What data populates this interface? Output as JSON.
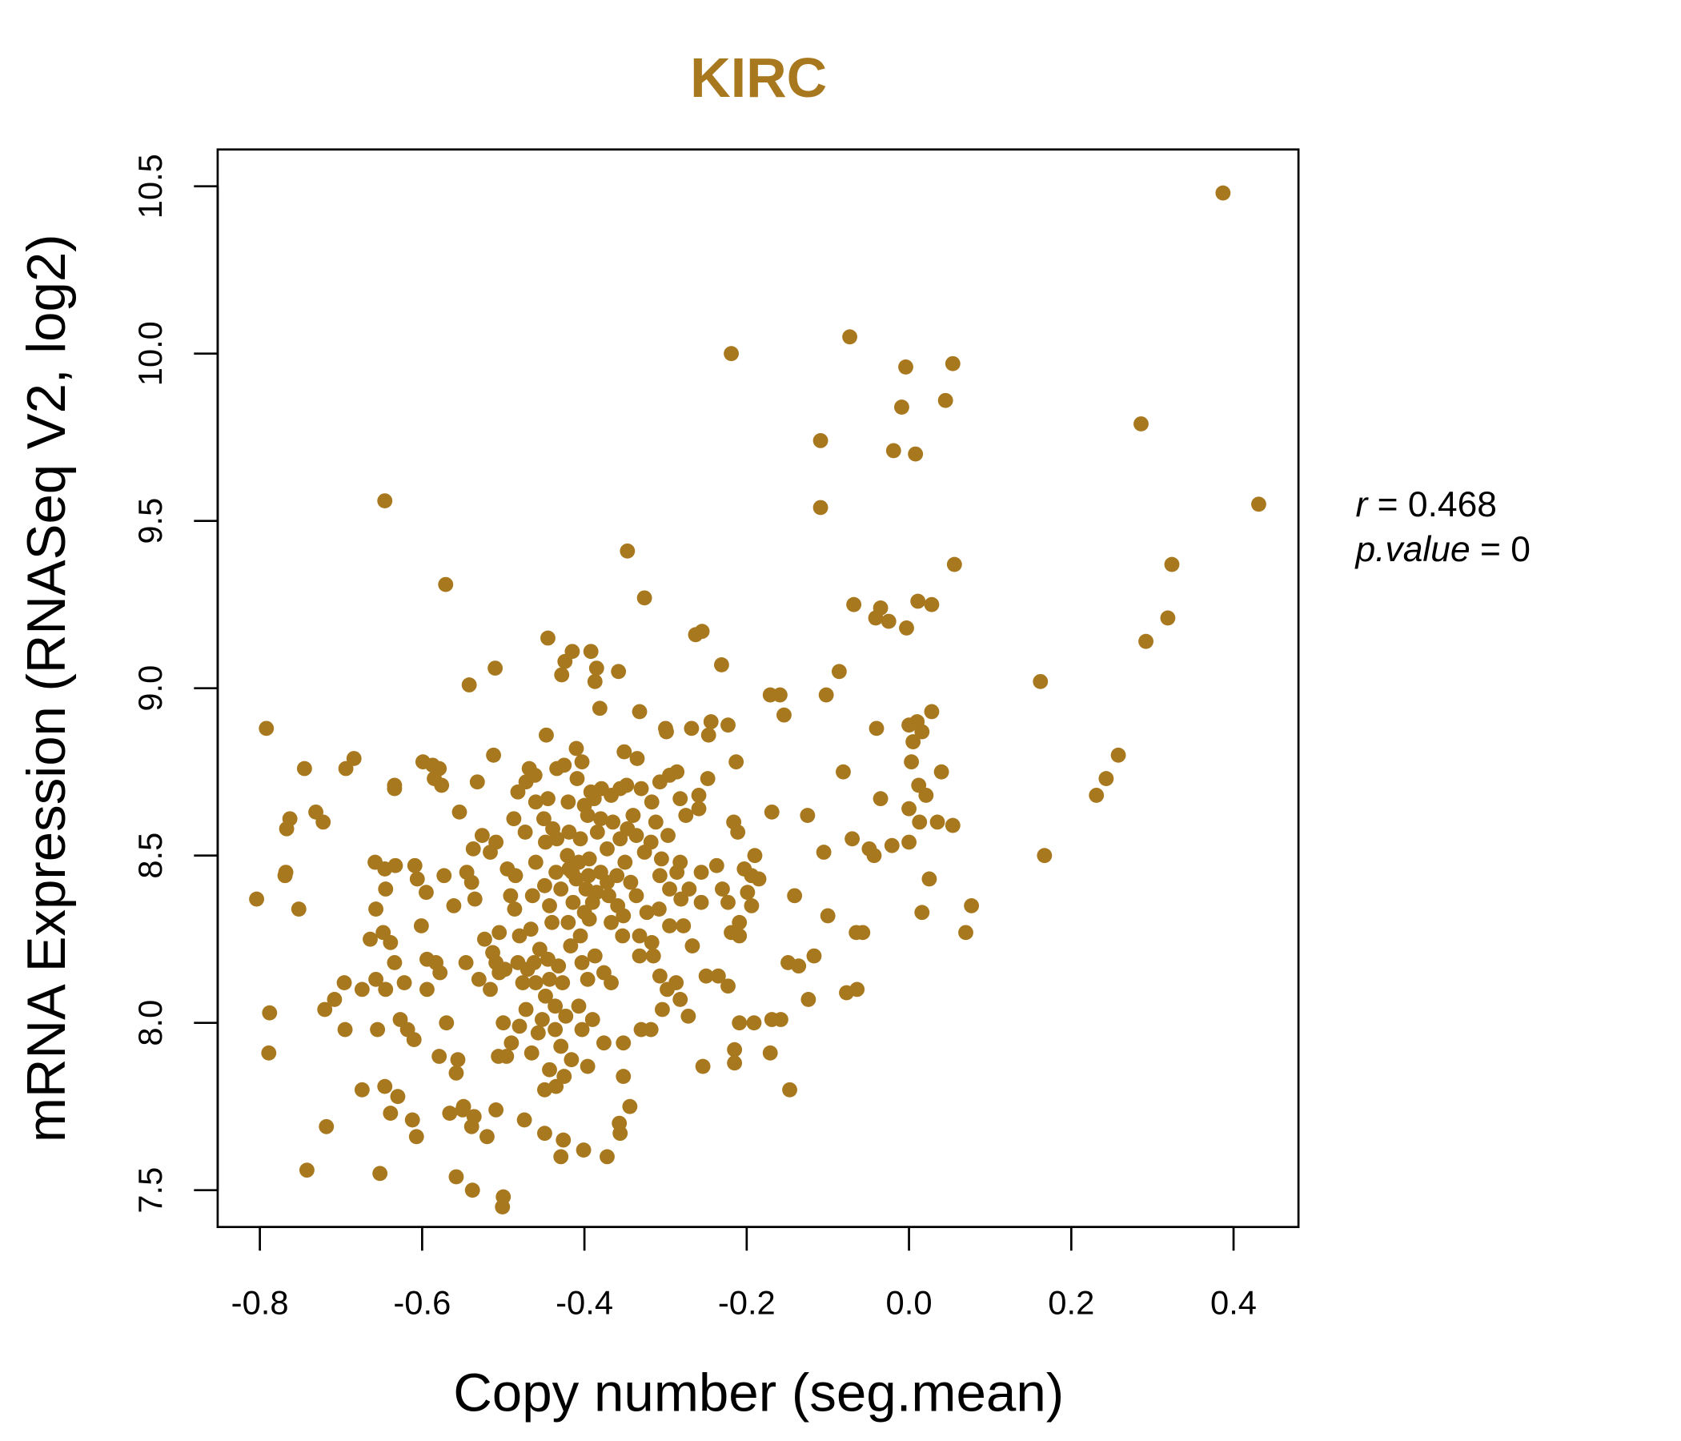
{
  "chart_data": {
    "type": "scatter",
    "title": "KIRC",
    "xlabel": "Copy number (seg.mean)",
    "ylabel": "mRNA Expression (RNASeq V2, log2)",
    "xlim": [
      -0.852,
      0.48
    ],
    "ylim": [
      7.39,
      10.61
    ],
    "xticks": [
      -0.8,
      -0.6,
      -0.4,
      -0.2,
      0.0,
      0.2,
      0.4
    ],
    "xtick_labels": [
      "-0.8",
      "-0.6",
      "-0.4",
      "-0.2",
      "0.0",
      "0.2",
      "0.4"
    ],
    "yticks": [
      7.5,
      8.0,
      8.5,
      9.0,
      9.5,
      10.0,
      10.5
    ],
    "ytick_labels": [
      "7.5",
      "8.0",
      "8.5",
      "9.0",
      "9.5",
      "10.0",
      "10.5"
    ],
    "grid": false,
    "color": "#A8781E",
    "stats": {
      "r_symbol": "r",
      "r_eq": " = ",
      "r_value": "0.468",
      "p_symbol": "p.value",
      "p_eq": " = ",
      "p_value": "0"
    },
    "points": [
      [
        0.387,
        10.48
      ],
      [
        0.431,
        9.55
      ],
      [
        -0.219,
        10.0
      ],
      [
        -0.073,
        10.05
      ],
      [
        -0.004,
        9.96
      ],
      [
        0.054,
        9.97
      ],
      [
        -0.009,
        9.84
      ],
      [
        0.045,
        9.86
      ],
      [
        -0.109,
        9.74
      ],
      [
        -0.019,
        9.71
      ],
      [
        0.008,
        9.7
      ],
      [
        0.286,
        9.79
      ],
      [
        -0.109,
        9.54
      ],
      [
        -0.646,
        9.56
      ],
      [
        -0.347,
        9.41
      ],
      [
        -0.571,
        9.31
      ],
      [
        -0.326,
        9.27
      ],
      [
        0.056,
        9.37
      ],
      [
        0.324,
        9.37
      ],
      [
        0.319,
        9.21
      ],
      [
        0.292,
        9.14
      ],
      [
        -0.068,
        9.25
      ],
      [
        -0.035,
        9.24
      ],
      [
        -0.041,
        9.21
      ],
      [
        -0.025,
        9.2
      ],
      [
        -0.003,
        9.18
      ],
      [
        0.011,
        9.26
      ],
      [
        0.028,
        9.25
      ],
      [
        -0.263,
        9.16
      ],
      [
        -0.255,
        9.17
      ],
      [
        -0.231,
        9.07
      ],
      [
        -0.445,
        9.15
      ],
      [
        -0.415,
        9.11
      ],
      [
        -0.392,
        9.11
      ],
      [
        -0.51,
        9.06
      ],
      [
        -0.542,
        9.01
      ],
      [
        -0.424,
        9.08
      ],
      [
        -0.428,
        9.04
      ],
      [
        -0.385,
        9.06
      ],
      [
        -0.387,
        9.02
      ],
      [
        -0.358,
        9.05
      ],
      [
        -0.086,
        9.05
      ],
      [
        -0.102,
        8.98
      ],
      [
        0.162,
        9.02
      ],
      [
        -0.171,
        8.98
      ],
      [
        -0.159,
        8.98
      ],
      [
        -0.154,
        8.92
      ],
      [
        -0.381,
        8.94
      ],
      [
        -0.332,
        8.93
      ],
      [
        -0.792,
        8.88
      ],
      [
        -0.447,
        8.86
      ],
      [
        -0.299,
        8.87
      ],
      [
        -0.3,
        8.88
      ],
      [
        -0.268,
        8.88
      ],
      [
        -0.244,
        8.9
      ],
      [
        -0.247,
        8.86
      ],
      [
        -0.223,
        8.89
      ],
      [
        -0.04,
        8.88
      ],
      [
        0.0,
        8.89
      ],
      [
        0.01,
        8.9
      ],
      [
        0.016,
        8.87
      ],
      [
        0.005,
        8.84
      ],
      [
        0.028,
        8.93
      ],
      [
        0.003,
        8.78
      ],
      [
        0.258,
        8.8
      ],
      [
        0.243,
        8.73
      ],
      [
        0.231,
        8.68
      ],
      [
        -0.081,
        8.75
      ],
      [
        0.04,
        8.75
      ],
      [
        0.012,
        8.71
      ],
      [
        0.021,
        8.68
      ],
      [
        -0.035,
        8.67
      ],
      [
        0.0,
        8.64
      ],
      [
        0.054,
        8.59
      ],
      [
        0.035,
        8.6
      ],
      [
        0.013,
        8.6
      ],
      [
        0.167,
        8.5
      ],
      [
        -0.07,
        8.55
      ],
      [
        -0.049,
        8.52
      ],
      [
        -0.043,
        8.5
      ],
      [
        -0.021,
        8.53
      ],
      [
        0.0,
        8.54
      ],
      [
        0.025,
        8.43
      ],
      [
        0.016,
        8.33
      ],
      [
        0.077,
        8.35
      ],
      [
        0.07,
        8.27
      ],
      [
        -0.065,
        8.27
      ],
      [
        -0.057,
        8.27
      ],
      [
        -0.1,
        8.32
      ],
      [
        -0.064,
        8.1
      ],
      [
        -0.077,
        8.09
      ],
      [
        -0.105,
        8.51
      ],
      [
        -0.125,
        8.62
      ],
      [
        -0.169,
        8.63
      ],
      [
        -0.213,
        8.78
      ],
      [
        -0.216,
        8.6
      ],
      [
        -0.211,
        8.57
      ],
      [
        -0.141,
        8.38
      ],
      [
        -0.149,
        8.18
      ],
      [
        -0.136,
        8.17
      ],
      [
        -0.117,
        8.2
      ],
      [
        -0.124,
        8.07
      ],
      [
        -0.158,
        8.01
      ],
      [
        -0.169,
        8.01
      ],
      [
        -0.191,
        8.0
      ],
      [
        -0.209,
        8.0
      ],
      [
        -0.215,
        7.92
      ],
      [
        -0.215,
        7.88
      ],
      [
        -0.171,
        7.91
      ],
      [
        -0.147,
        7.8
      ],
      [
        -0.254,
        7.87
      ],
      [
        -0.804,
        8.37
      ],
      [
        -0.752,
        8.34
      ],
      [
        -0.769,
        8.44
      ],
      [
        -0.768,
        8.45
      ],
      [
        -0.745,
        8.76
      ],
      [
        -0.767,
        8.58
      ],
      [
        -0.763,
        8.61
      ],
      [
        -0.731,
        8.63
      ],
      [
        -0.722,
        8.6
      ],
      [
        -0.694,
        8.76
      ],
      [
        -0.684,
        8.79
      ],
      [
        -0.788,
        8.03
      ],
      [
        -0.789,
        7.91
      ],
      [
        -0.72,
        8.04
      ],
      [
        -0.708,
        8.07
      ],
      [
        -0.696,
        8.12
      ],
      [
        -0.695,
        7.98
      ],
      [
        -0.674,
        8.1
      ],
      [
        -0.674,
        7.8
      ],
      [
        -0.718,
        7.69
      ],
      [
        -0.742,
        7.56
      ],
      [
        -0.652,
        7.55
      ],
      [
        -0.655,
        7.98
      ],
      [
        -0.657,
        8.13
      ],
      [
        -0.664,
        8.25
      ],
      [
        -0.657,
        8.34
      ],
      [
        -0.658,
        8.48
      ],
      [
        -0.646,
        8.46
      ],
      [
        -0.645,
        8.4
      ],
      [
        -0.648,
        8.27
      ],
      [
        -0.639,
        8.24
      ],
      [
        -0.634,
        8.18
      ],
      [
        -0.645,
        8.1
      ],
      [
        -0.622,
        8.12
      ],
      [
        -0.633,
        8.47
      ],
      [
        -0.634,
        8.7
      ],
      [
        -0.634,
        8.71
      ],
      [
        -0.646,
        7.81
      ],
      [
        -0.639,
        7.73
      ],
      [
        -0.63,
        7.78
      ],
      [
        -0.627,
        8.01
      ],
      [
        -0.618,
        7.98
      ],
      [
        -0.61,
        7.95
      ],
      [
        -0.612,
        7.71
      ],
      [
        -0.607,
        7.66
      ],
      [
        -0.609,
        8.47
      ],
      [
        -0.606,
        8.43
      ],
      [
        -0.601,
        8.29
      ],
      [
        -0.595,
        8.39
      ],
      [
        -0.594,
        8.19
      ],
      [
        -0.594,
        8.1
      ],
      [
        -0.583,
        8.18
      ],
      [
        -0.578,
        8.15
      ],
      [
        -0.599,
        8.78
      ],
      [
        -0.587,
        8.77
      ],
      [
        -0.579,
        8.76
      ],
      [
        -0.585,
        8.73
      ],
      [
        -0.576,
        8.71
      ],
      [
        -0.573,
        8.44
      ],
      [
        -0.57,
        8.0
      ],
      [
        -0.579,
        7.9
      ],
      [
        -0.566,
        7.73
      ],
      [
        -0.558,
        7.85
      ],
      [
        -0.556,
        7.89
      ],
      [
        -0.558,
        7.54
      ],
      [
        -0.538,
        7.5
      ],
      [
        -0.55,
        7.74
      ],
      [
        -0.539,
        7.69
      ],
      [
        -0.536,
        7.72
      ],
      [
        -0.549,
        7.75
      ],
      [
        -0.52,
        7.66
      ],
      [
        -0.509,
        7.74
      ],
      [
        -0.501,
        7.45
      ],
      [
        -0.5,
        7.48
      ],
      [
        -0.561,
        8.35
      ],
      [
        -0.554,
        8.63
      ],
      [
        -0.546,
        8.18
      ],
      [
        -0.545,
        8.45
      ],
      [
        -0.539,
        8.42
      ],
      [
        -0.535,
        8.37
      ],
      [
        -0.532,
        8.72
      ],
      [
        -0.537,
        8.52
      ],
      [
        -0.526,
        8.56
      ],
      [
        -0.516,
        8.51
      ],
      [
        -0.509,
        8.54
      ],
      [
        -0.512,
        8.8
      ],
      [
        -0.53,
        8.13
      ],
      [
        -0.523,
        8.25
      ],
      [
        -0.513,
        8.21
      ],
      [
        -0.509,
        8.18
      ],
      [
        -0.505,
        8.15
      ],
      [
        -0.516,
        8.1
      ],
      [
        -0.5,
        8.0
      ],
      [
        -0.506,
        7.9
      ],
      [
        -0.496,
        7.9
      ],
      [
        -0.49,
        7.94
      ],
      [
        -0.474,
        7.71
      ],
      [
        -0.482,
        8.18
      ],
      [
        -0.486,
        8.34
      ],
      [
        -0.491,
        8.38
      ],
      [
        -0.495,
        8.46
      ],
      [
        -0.487,
        8.61
      ],
      [
        -0.473,
        8.57
      ],
      [
        -0.482,
        8.69
      ],
      [
        -0.472,
        8.72
      ],
      [
        -0.468,
        8.76
      ],
      [
        -0.461,
        8.74
      ],
      [
        -0.46,
        8.66
      ],
      [
        -0.464,
        8.38
      ],
      [
        -0.466,
        8.28
      ],
      [
        -0.462,
        8.18
      ],
      [
        -0.46,
        8.12
      ],
      [
        -0.465,
        7.91
      ],
      [
        -0.449,
        7.8
      ],
      [
        -0.443,
        7.86
      ],
      [
        -0.449,
        7.67
      ],
      [
        -0.429,
        7.6
      ],
      [
        -0.426,
        7.65
      ],
      [
        -0.401,
        7.62
      ],
      [
        -0.372,
        7.6
      ],
      [
        -0.356,
        7.67
      ],
      [
        -0.357,
        7.7
      ],
      [
        -0.344,
        7.75
      ],
      [
        -0.352,
        7.84
      ],
      [
        -0.396,
        7.87
      ],
      [
        -0.416,
        7.89
      ],
      [
        -0.425,
        7.84
      ],
      [
        -0.435,
        7.81
      ],
      [
        -0.376,
        7.94
      ],
      [
        -0.352,
        7.94
      ],
      [
        -0.33,
        7.98
      ],
      [
        -0.318,
        7.98
      ],
      [
        -0.304,
        8.04
      ],
      [
        -0.272,
        8.02
      ],
      [
        -0.282,
        8.07
      ],
      [
        -0.298,
        8.1
      ],
      [
        -0.287,
        8.12
      ],
      [
        -0.307,
        8.14
      ],
      [
        -0.315,
        8.2
      ],
      [
        -0.317,
        8.24
      ],
      [
        -0.332,
        8.26
      ],
      [
        -0.332,
        8.2
      ],
      [
        -0.367,
        8.12
      ],
      [
        -0.376,
        8.15
      ],
      [
        -0.387,
        8.2
      ],
      [
        -0.403,
        8.18
      ],
      [
        -0.396,
        8.13
      ],
      [
        -0.407,
        8.05
      ],
      [
        -0.403,
        7.98
      ],
      [
        -0.39,
        8.01
      ],
      [
        -0.423,
        8.02
      ],
      [
        -0.436,
        8.05
      ],
      [
        -0.452,
        8.01
      ],
      [
        -0.448,
        8.08
      ],
      [
        -0.443,
        8.13
      ],
      [
        -0.432,
        8.17
      ],
      [
        -0.445,
        8.19
      ],
      [
        -0.417,
        8.23
      ],
      [
        -0.405,
        8.26
      ],
      [
        -0.394,
        8.31
      ],
      [
        -0.414,
        8.36
      ],
      [
        -0.429,
        8.4
      ],
      [
        -0.443,
        8.35
      ],
      [
        -0.449,
        8.41
      ],
      [
        -0.435,
        8.45
      ],
      [
        -0.419,
        8.46
      ],
      [
        -0.407,
        8.48
      ],
      [
        -0.395,
        8.44
      ],
      [
        -0.385,
        8.39
      ],
      [
        -0.372,
        8.42
      ],
      [
        -0.36,
        8.44
      ],
      [
        -0.343,
        8.42
      ],
      [
        -0.336,
        8.38
      ],
      [
        -0.359,
        8.35
      ],
      [
        -0.367,
        8.3
      ],
      [
        -0.353,
        8.26
      ],
      [
        -0.352,
        8.32
      ],
      [
        -0.323,
        8.33
      ],
      [
        -0.307,
        8.44
      ],
      [
        -0.295,
        8.4
      ],
      [
        -0.281,
        8.37
      ],
      [
        -0.286,
        8.45
      ],
      [
        -0.256,
        8.45
      ],
      [
        -0.237,
        8.47
      ],
      [
        -0.203,
        8.46
      ],
      [
        -0.19,
        8.5
      ],
      [
        -0.194,
        8.44
      ],
      [
        -0.185,
        8.43
      ],
      [
        -0.199,
        8.39
      ],
      [
        -0.223,
        8.36
      ],
      [
        -0.209,
        8.3
      ],
      [
        -0.219,
        8.27
      ],
      [
        -0.209,
        8.26
      ],
      [
        -0.194,
        8.35
      ],
      [
        -0.23,
        8.4
      ],
      [
        -0.25,
        8.14
      ],
      [
        -0.235,
        8.14
      ],
      [
        -0.223,
        8.11
      ],
      [
        -0.267,
        8.23
      ],
      [
        -0.278,
        8.29
      ],
      [
        -0.256,
        8.36
      ],
      [
        -0.295,
        8.29
      ],
      [
        -0.308,
        8.34
      ],
      [
        -0.326,
        8.51
      ],
      [
        -0.336,
        8.56
      ],
      [
        -0.347,
        8.58
      ],
      [
        -0.356,
        8.55
      ],
      [
        -0.372,
        8.52
      ],
      [
        -0.384,
        8.57
      ],
      [
        -0.38,
        8.61
      ],
      [
        -0.396,
        8.62
      ],
      [
        -0.4,
        8.65
      ],
      [
        -0.392,
        8.69
      ],
      [
        -0.409,
        8.73
      ],
      [
        -0.403,
        8.78
      ],
      [
        -0.41,
        8.82
      ],
      [
        -0.425,
        8.77
      ],
      [
        -0.434,
        8.76
      ],
      [
        -0.445,
        8.67
      ],
      [
        -0.45,
        8.61
      ],
      [
        -0.434,
        8.55
      ],
      [
        -0.419,
        8.57
      ],
      [
        -0.42,
        8.66
      ],
      [
        -0.388,
        8.67
      ],
      [
        -0.379,
        8.7
      ],
      [
        -0.367,
        8.68
      ],
      [
        -0.356,
        8.7
      ],
      [
        -0.348,
        8.71
      ],
      [
        -0.351,
        8.81
      ],
      [
        -0.335,
        8.79
      ],
      [
        -0.33,
        8.7
      ],
      [
        -0.317,
        8.66
      ],
      [
        -0.307,
        8.72
      ],
      [
        -0.295,
        8.74
      ],
      [
        -0.286,
        8.75
      ],
      [
        -0.282,
        8.67
      ],
      [
        -0.275,
        8.62
      ],
      [
        -0.259,
        8.64
      ],
      [
        -0.259,
        8.68
      ],
      [
        -0.248,
        8.73
      ],
      [
        -0.312,
        8.6
      ],
      [
        -0.297,
        8.56
      ],
      [
        -0.318,
        8.54
      ],
      [
        -0.305,
        8.49
      ],
      [
        -0.282,
        8.48
      ],
      [
        -0.271,
        8.4
      ],
      [
        -0.394,
        8.49
      ],
      [
        -0.421,
        8.5
      ],
      [
        -0.448,
        8.54
      ],
      [
        -0.439,
        8.58
      ],
      [
        -0.485,
        8.44
      ],
      [
        -0.505,
        8.27
      ],
      [
        -0.498,
        8.16
      ],
      [
        -0.48,
        7.99
      ],
      [
        -0.472,
        8.04
      ],
      [
        -0.457,
        7.97
      ],
      [
        -0.429,
        7.93
      ],
      [
        -0.476,
        8.12
      ],
      [
        -0.427,
        8.12
      ],
      [
        -0.436,
        7.98
      ],
      [
        -0.47,
        8.16
      ],
      [
        -0.398,
        8.4
      ],
      [
        -0.41,
        8.43
      ],
      [
        -0.38,
        8.45
      ],
      [
        -0.39,
        8.36
      ],
      [
        -0.42,
        8.3
      ],
      [
        -0.37,
        8.38
      ],
      [
        -0.4,
        8.33
      ],
      [
        -0.415,
        8.45
      ],
      [
        -0.44,
        8.3
      ],
      [
        -0.455,
        8.22
      ],
      [
        -0.48,
        8.26
      ],
      [
        -0.35,
        8.48
      ],
      [
        -0.34,
        8.62
      ],
      [
        -0.365,
        8.6
      ],
      [
        -0.405,
        8.55
      ],
      [
        -0.46,
        8.48
      ]
    ]
  }
}
